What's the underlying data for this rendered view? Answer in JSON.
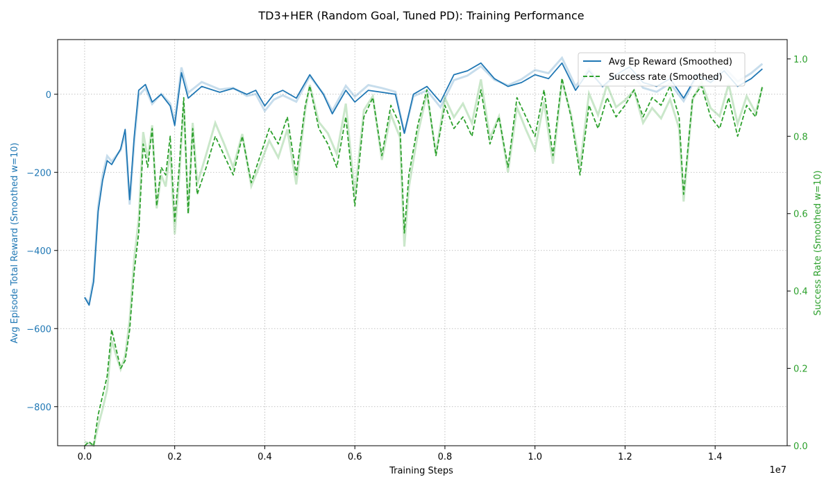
{
  "chart_data": {
    "type": "line",
    "title": "TD3+HER (Random Goal, Tuned PD): Training Performance",
    "xlabel": "Training Steps",
    "x_offset_label": "1e7",
    "x_tick_labels": [
      "0.0",
      "0.2",
      "0.4",
      "0.6",
      "0.8",
      "1.0",
      "1.2",
      "1.4"
    ],
    "x_ticks": [
      0,
      2000000,
      4000000,
      6000000,
      8000000,
      10000000,
      12000000,
      14000000
    ],
    "xlim": [
      -600000,
      15600000
    ],
    "ylabel_left": "Avg Episode Total Reward (Smoothed w=10)",
    "ylabel_right": "Success Rate (Smoothed w=10)",
    "ylim_left": [
      -900,
      140
    ],
    "ylim_right": [
      0.0,
      1.05
    ],
    "left_tick_labels": [
      "−800",
      "−600",
      "−400",
      "−200",
      "0"
    ],
    "left_ticks": [
      -800,
      -600,
      -400,
      -200,
      0
    ],
    "right_tick_labels": [
      "0.0",
      "0.2",
      "0.4",
      "0.6",
      "0.8",
      "1.0"
    ],
    "right_ticks": [
      0.0,
      0.2,
      0.4,
      0.6,
      0.8,
      1.0
    ],
    "grid": true,
    "legend_position": "top-right",
    "colors": {
      "reward": "#1f77b4",
      "success": "#2ca02c"
    },
    "series": [
      {
        "name": "Avg Ep Reward (Smoothed)",
        "axis": "left",
        "style": "solid",
        "x": [
          0,
          100000,
          200000,
          300000,
          400000,
          500000,
          600000,
          700000,
          800000,
          900000,
          1000000,
          1100000,
          1200000,
          1350000,
          1500000,
          1700000,
          1900000,
          2000000,
          2150000,
          2300000,
          2600000,
          3000000,
          3300000,
          3600000,
          3800000,
          4000000,
          4200000,
          4400000,
          4700000,
          5000000,
          5300000,
          5500000,
          5800000,
          6000000,
          6300000,
          6600000,
          6900000,
          7100000,
          7300000,
          7600000,
          7900000,
          8200000,
          8500000,
          8800000,
          9100000,
          9400000,
          9700000,
          10000000,
          10300000,
          10600000,
          10900000,
          11200000,
          11500000,
          11800000,
          12100000,
          12400000,
          12700000,
          13000000,
          13300000,
          13600000,
          13900000,
          14200000,
          14500000,
          14800000,
          15050000
        ],
        "values": [
          -520,
          -540,
          -480,
          -300,
          -220,
          -170,
          -180,
          -160,
          -140,
          -90,
          -270,
          -110,
          10,
          25,
          -20,
          0,
          -30,
          -80,
          55,
          -10,
          20,
          5,
          15,
          0,
          10,
          -30,
          0,
          10,
          -10,
          50,
          0,
          -50,
          10,
          -20,
          10,
          5,
          0,
          -100,
          0,
          20,
          -20,
          50,
          60,
          80,
          40,
          20,
          30,
          50,
          40,
          80,
          10,
          60,
          20,
          50,
          70,
          30,
          20,
          40,
          -10,
          50,
          30,
          60,
          20,
          40,
          65
        ]
      },
      {
        "name": "Success rate (Smoothed)",
        "axis": "right",
        "style": "dashed",
        "x": [
          0,
          100000,
          200000,
          300000,
          400000,
          500000,
          600000,
          700000,
          800000,
          900000,
          1000000,
          1100000,
          1200000,
          1300000,
          1400000,
          1500000,
          1600000,
          1700000,
          1800000,
          1900000,
          2000000,
          2100000,
          2200000,
          2300000,
          2400000,
          2500000,
          2700000,
          2900000,
          3100000,
          3300000,
          3500000,
          3700000,
          3900000,
          4100000,
          4300000,
          4500000,
          4700000,
          4900000,
          5000000,
          5200000,
          5400000,
          5600000,
          5800000,
          6000000,
          6200000,
          6400000,
          6600000,
          6800000,
          7000000,
          7100000,
          7200000,
          7400000,
          7600000,
          7800000,
          8000000,
          8200000,
          8400000,
          8600000,
          8800000,
          9000000,
          9200000,
          9400000,
          9600000,
          9800000,
          10000000,
          10200000,
          10400000,
          10600000,
          10800000,
          11000000,
          11200000,
          11400000,
          11600000,
          11800000,
          12000000,
          12200000,
          12400000,
          12600000,
          12800000,
          13000000,
          13200000,
          13300000,
          13500000,
          13700000,
          13900000,
          14100000,
          14300000,
          14500000,
          14700000,
          14900000,
          15050000
        ],
        "values": [
          0.0,
          0.01,
          0.0,
          0.08,
          0.13,
          0.18,
          0.3,
          0.25,
          0.2,
          0.22,
          0.3,
          0.45,
          0.55,
          0.78,
          0.72,
          0.82,
          0.62,
          0.72,
          0.7,
          0.8,
          0.58,
          0.72,
          0.9,
          0.6,
          0.82,
          0.65,
          0.72,
          0.8,
          0.75,
          0.7,
          0.8,
          0.68,
          0.75,
          0.82,
          0.78,
          0.85,
          0.7,
          0.88,
          0.93,
          0.82,
          0.78,
          0.72,
          0.85,
          0.62,
          0.85,
          0.9,
          0.75,
          0.88,
          0.83,
          0.55,
          0.7,
          0.83,
          0.92,
          0.75,
          0.88,
          0.82,
          0.85,
          0.8,
          0.92,
          0.78,
          0.85,
          0.72,
          0.9,
          0.85,
          0.8,
          0.92,
          0.75,
          0.95,
          0.85,
          0.7,
          0.88,
          0.82,
          0.9,
          0.85,
          0.88,
          0.92,
          0.85,
          0.9,
          0.88,
          0.93,
          0.85,
          0.65,
          0.9,
          0.93,
          0.85,
          0.82,
          0.9,
          0.8,
          0.88,
          0.85,
          0.93
        ]
      }
    ]
  }
}
